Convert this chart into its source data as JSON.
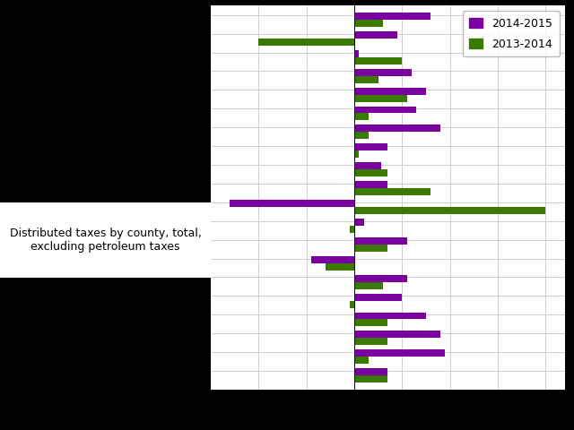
{
  "legend_2014_2015": "2014-2015",
  "legend_2013_2014": "2013-2014",
  "color_2014_2015": "#7B00A0",
  "color_2013_2014": "#3A7A00",
  "annotation": "Distributed taxes by county, total,\nexcluding petroleum taxes",
  "values_2014_2015": [
    8.0,
    4.5,
    0.5,
    6.0,
    7.5,
    6.5,
    9.0,
    3.5,
    2.8,
    3.5,
    -13.0,
    1.0,
    5.5,
    -4.5,
    5.5,
    5.0,
    7.5,
    9.0,
    9.5,
    3.5
  ],
  "values_2013_2014": [
    3.0,
    -10.0,
    5.0,
    2.5,
    5.5,
    1.5,
    1.5,
    0.5,
    3.5,
    8.0,
    20.0,
    -0.5,
    3.5,
    -3.0,
    3.0,
    -0.5,
    3.5,
    3.5,
    1.5,
    3.5
  ],
  "n_rows": 20,
  "xlim_left": -15,
  "xlim_right": 22,
  "background_color": "#000000",
  "plot_area_color": "#ffffff",
  "gridcolor": "#c8c8c8",
  "bar_height": 0.38
}
